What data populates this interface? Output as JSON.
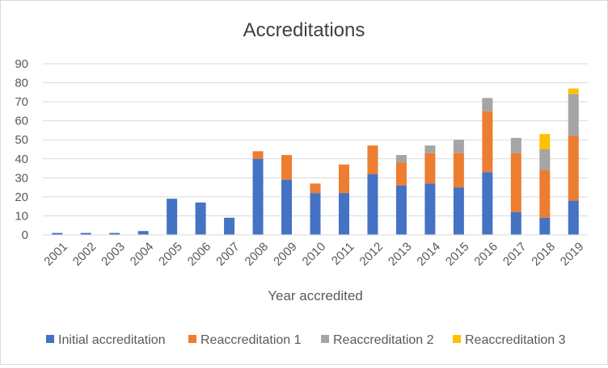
{
  "chart_data": {
    "type": "bar",
    "stacked": true,
    "title": "Accreditations",
    "xlabel": "Year accredited",
    "ylabel": "",
    "ylim": [
      0,
      90
    ],
    "yticks": [
      0,
      10,
      20,
      30,
      40,
      50,
      60,
      70,
      80,
      90
    ],
    "grid": true,
    "legend_position": "bottom",
    "categories": [
      "2001",
      "2002",
      "2003",
      "2004",
      "2005",
      "2006",
      "2007",
      "2008",
      "2009",
      "2010",
      "2011",
      "2012",
      "2013",
      "2014",
      "2015",
      "2016",
      "2017",
      "2018",
      "2019"
    ],
    "series": [
      {
        "name": "Initial accreditation",
        "color": "#4472c4",
        "values": [
          1,
          1,
          1,
          2,
          19,
          17,
          9,
          40,
          29,
          22,
          22,
          32,
          26,
          27,
          25,
          33,
          12,
          9,
          18
        ]
      },
      {
        "name": "Reaccreditation 1",
        "color": "#ed7d31",
        "values": [
          0,
          0,
          0,
          0,
          0,
          0,
          0,
          4,
          13,
          5,
          15,
          15,
          12,
          16,
          18,
          32,
          31,
          25,
          34
        ]
      },
      {
        "name": "Reaccreditation 2",
        "color": "#a5a5a5",
        "values": [
          0,
          0,
          0,
          0,
          0,
          0,
          0,
          0,
          0,
          0,
          0,
          0,
          4,
          4,
          7,
          7,
          8,
          11,
          22
        ]
      },
      {
        "name": "Reaccreditation 3",
        "color": "#ffc000",
        "values": [
          0,
          0,
          0,
          0,
          0,
          0,
          0,
          0,
          0,
          0,
          0,
          0,
          0,
          0,
          0,
          0,
          0,
          8,
          3
        ]
      }
    ]
  }
}
